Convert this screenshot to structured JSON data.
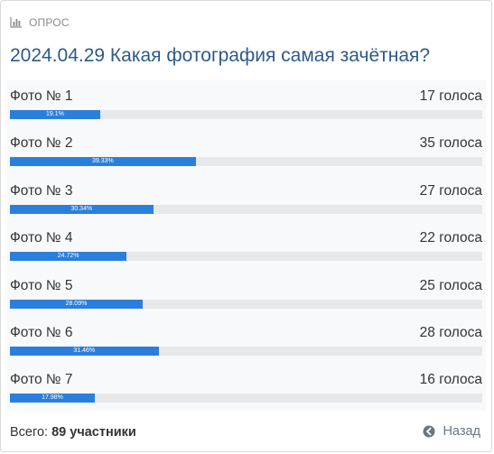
{
  "poll": {
    "header_label": "ОПРОС",
    "title": "2024.04.29 Какая фотография самая зачётная?",
    "options": [
      {
        "label": "Фото № 1",
        "votes": "17 голоса",
        "percent_label": "19.1%",
        "percent": 19.1
      },
      {
        "label": "Фото № 2",
        "votes": "35 голоса",
        "percent_label": "39.33%",
        "percent": 39.33
      },
      {
        "label": "Фото № 3",
        "votes": "27 голоса",
        "percent_label": "30.34%",
        "percent": 30.34
      },
      {
        "label": "Фото № 4",
        "votes": "22 голоса",
        "percent_label": "24.72%",
        "percent": 24.72
      },
      {
        "label": "Фото № 5",
        "votes": "25 голоса",
        "percent_label": "28.09%",
        "percent": 28.09
      },
      {
        "label": "Фото № 6",
        "votes": "28 голоса",
        "percent_label": "31.46%",
        "percent": 31.46
      },
      {
        "label": "Фото № 7",
        "votes": "16 голоса",
        "percent_label": "17.98%",
        "percent": 17.98
      }
    ],
    "footer": {
      "total_label": "Всего:",
      "total_value": "89 участники",
      "back_label": "Назад"
    }
  },
  "icons": {
    "header": "bar-chart-icon",
    "back": "arrow-left-circle-icon"
  },
  "colors": {
    "title": "#2e5a8a",
    "bar_fill": "#2b7fdc",
    "bar_track": "#e6e8ea",
    "body_bg": "#f8f9fa"
  }
}
